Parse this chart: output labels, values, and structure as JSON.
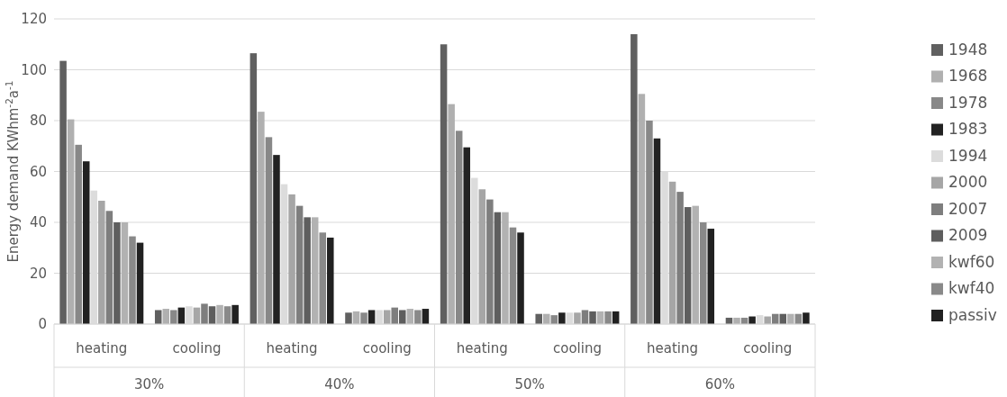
{
  "chart_data": {
    "type": "bar",
    "ylabel": "Energy demand KWhm$^{-2}$a$^{-1}$",
    "categories": [
      "heating",
      "cooling",
      "heating",
      "cooling",
      "heating",
      "cooling",
      "heating",
      "cooling"
    ],
    "annotations": [
      "30%",
      "40%",
      "50%",
      "60%"
    ],
    "series": [
      {
        "name": "1948",
        "color": "#606060",
        "values": [
          103.5,
          5.5,
          106.5,
          4.5,
          110,
          4,
          114,
          2.5
        ]
      },
      {
        "name": "1968",
        "color": "#b0b0b0",
        "values": [
          80.5,
          6,
          83.5,
          5,
          86.5,
          4,
          90.5,
          2.5
        ]
      },
      {
        "name": "1978",
        "color": "#888888",
        "values": [
          70.5,
          5.5,
          73.5,
          4.5,
          76,
          3.5,
          80,
          2.5
        ]
      },
      {
        "name": "1983",
        "color": "#222222",
        "values": [
          64,
          6.5,
          66.5,
          5.5,
          69.5,
          4.5,
          73,
          3
        ]
      },
      {
        "name": "1994",
        "color": "#dcdcdc",
        "values": [
          52.5,
          7,
          55,
          5.5,
          57.5,
          4.5,
          60,
          3.5
        ]
      },
      {
        "name": "2000",
        "color": "#a6a6a6",
        "values": [
          48.5,
          6.5,
          51,
          5.5,
          53,
          4.5,
          56,
          3
        ]
      },
      {
        "name": "2007",
        "color": "#7e7e7e",
        "values": [
          44.5,
          8,
          46.5,
          6.5,
          49,
          5.5,
          52,
          4
        ]
      },
      {
        "name": "2009",
        "color": "#5e5e5e",
        "values": [
          40,
          7,
          42,
          5.5,
          44,
          5,
          46,
          4
        ]
      },
      {
        "name": "kwf60",
        "color": "#b2b2b2",
        "values": [
          40,
          7.5,
          42,
          6,
          44,
          5,
          46.5,
          4
        ]
      },
      {
        "name": "kwf40",
        "color": "#898989",
        "values": [
          34.5,
          7,
          36,
          5.5,
          38,
          5,
          40,
          4
        ]
      },
      {
        "name": "passiv",
        "color": "#212121",
        "values": [
          32,
          7.5,
          34,
          6,
          36,
          5,
          37.5,
          4.5
        ]
      }
    ],
    "ylim": [
      0,
      120
    ],
    "yticks": [
      0,
      20,
      40,
      60,
      80,
      100,
      120
    ],
    "grid": "y",
    "legend": "right"
  }
}
